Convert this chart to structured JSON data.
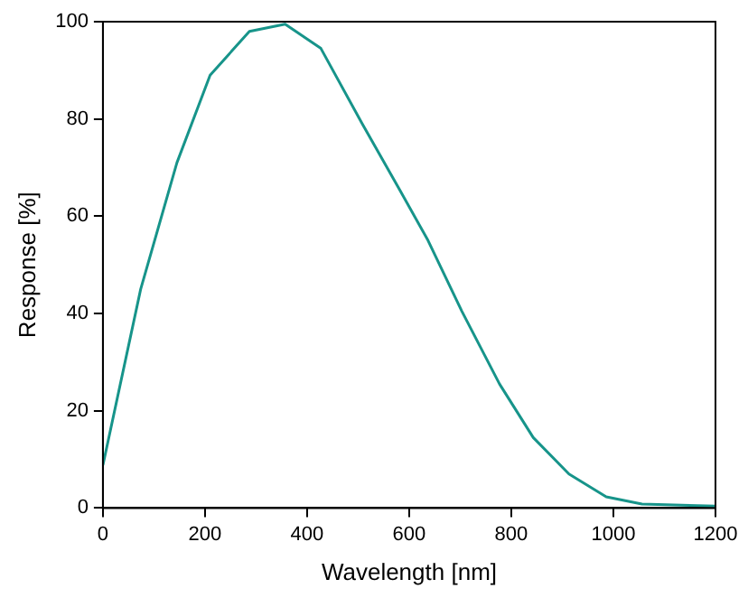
{
  "chart_data": {
    "type": "line",
    "xlabel": "Wavelength [nm]",
    "ylabel": "Response [%]",
    "x": [
      0,
      74,
      145,
      210,
      287,
      357,
      427,
      508,
      581,
      637,
      703,
      777,
      843,
      913,
      986,
      1056,
      1200
    ],
    "series": [
      {
        "color": "#17948a",
        "values": [
          8.8,
          45,
          71,
          89,
          98,
          99.5,
          94.5,
          79,
          65.5,
          55,
          40.5,
          25.5,
          14.5,
          7,
          2.3,
          0.8,
          0.4
        ]
      }
    ],
    "xlim": [
      0,
      1200
    ],
    "xticks": [
      0,
      200,
      400,
      600,
      800,
      1000,
      1200
    ],
    "ylim": [
      0,
      100
    ],
    "yticks": [
      0,
      20,
      40,
      60,
      80,
      100
    ],
    "grid": false,
    "legend": false,
    "marker": "none",
    "line_style": "solid"
  }
}
